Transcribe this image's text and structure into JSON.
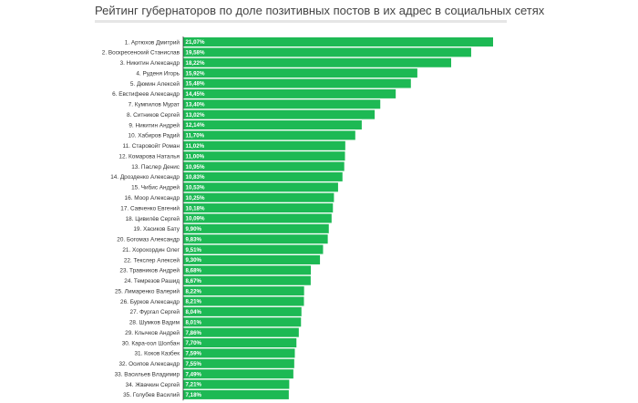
{
  "title": "Рейтинг губернаторов по доле позитивных постов в их адрес в социальных сетях",
  "colors": {
    "bar": "#1db954",
    "axis": "#333333",
    "title_rule": "#e6e6e6"
  },
  "chart_data": {
    "type": "bar",
    "orientation": "horizontal",
    "title": "Рейтинг губернаторов по доле позитивных постов в их адрес в социальных сетях",
    "xlabel": "",
    "ylabel": "",
    "grid": false,
    "xlim": [
      0,
      21.07
    ],
    "categories": [
      "1. Артюхов Дмитрий",
      "2. Воскресенский Станислав",
      "3. Никитин Александр",
      "4. Руденя Игорь",
      "5. Дюмин Алексей",
      "6. Евстифеев Александр",
      "7. Кумпилов Мурат",
      "8. Ситников Сергей",
      "9. Никитин Андрей",
      "10. Хабиров Радий",
      "11. Старовойт Роман",
      "12. Комарова Наталья",
      "13. Паслер Денис",
      "14. Дрозденко Александр",
      "15. Чибис Андрей",
      "16. Моор Александр",
      "17. Савченко Евгений",
      "18. Цивилёв Сергей",
      "19. Хасиков Бату",
      "20. Богомаз Александр",
      "21. Хорохордин Олег",
      "22. Текслер Алексей",
      "23. Травников Андрей",
      "24. Темрезов Рашид",
      "25. Лимаренко Валерий",
      "26. Бурков Александр",
      "27. Фургал Сергей",
      "28. Шумков Вадим",
      "29. Клычков Андрей",
      "30. Кара-оол Шолбан",
      "31. Коков Казбек",
      "32. Осипов Александр",
      "33. Васильев Владимир",
      "34. Жвачкин Сергей",
      "35. Голубев Василий"
    ],
    "values": [
      21.07,
      19.58,
      18.22,
      15.92,
      15.48,
      14.45,
      13.4,
      13.02,
      12.14,
      11.7,
      11.02,
      11.0,
      10.95,
      10.83,
      10.53,
      10.25,
      10.18,
      10.09,
      9.9,
      9.83,
      9.51,
      9.3,
      8.68,
      8.67,
      8.22,
      8.21,
      8.04,
      8.01,
      7.86,
      7.7,
      7.59,
      7.55,
      7.49,
      7.21,
      7.18
    ],
    "value_labels": [
      "21,07%",
      "19,58%",
      "18,22%",
      "15,92%",
      "15,48%",
      "14,45%",
      "13,40%",
      "13,02%",
      "12,14%",
      "11,70%",
      "11,02%",
      "11,00%",
      "10,95%",
      "10,83%",
      "10,53%",
      "10,25%",
      "10,18%",
      "10,09%",
      "9,90%",
      "9,83%",
      "9,51%",
      "9,30%",
      "8,68%",
      "8,67%",
      "8,22%",
      "8,21%",
      "8,04%",
      "8,01%",
      "7,86%",
      "7,70%",
      "7,59%",
      "7,55%",
      "7,49%",
      "7,21%",
      "7,18%"
    ]
  }
}
